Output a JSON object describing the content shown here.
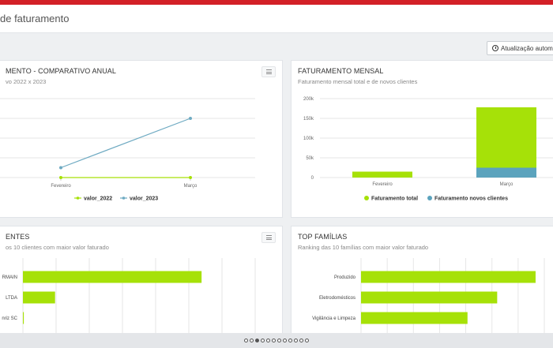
{
  "page": {
    "title": "de faturamento",
    "auto_update_label": "Atualização automá"
  },
  "cards": {
    "annual": {
      "title": "MENTO - COMPARATIVO ANUAL",
      "subtitle": "vo 2022 x 2023"
    },
    "monthly": {
      "title": "FATURAMENTO MENSAL",
      "subtitle": "Faturamento mensal total e de novos clientes"
    },
    "clients": {
      "title": "ENTES",
      "subtitle": "os 10 clientes com maior valor faturado"
    },
    "families": {
      "title": "TOP FAMÍLIAS",
      "subtitle": "Ranking das 10 famílias com maior valor faturado"
    }
  },
  "chart_data": [
    {
      "type": "line",
      "categories": [
        "Fevereiro",
        "Março"
      ],
      "series": [
        {
          "name": "valor_2022",
          "color": "#a6e108",
          "values": [
            0,
            0
          ]
        },
        {
          "name": "valor_2023",
          "color": "#6eaac2",
          "values": [
            1,
            6
          ]
        }
      ],
      "ylim": [
        0,
        8
      ]
    },
    {
      "type": "bar",
      "categories": [
        "Fevereiro",
        "Março"
      ],
      "yticks": [
        "0",
        "50k",
        "100k",
        "150k",
        "200k"
      ],
      "ylim": [
        0,
        200000
      ],
      "series": [
        {
          "name": "Faturamento total",
          "color": "#a6e108",
          "values": [
            15000,
            178000
          ]
        },
        {
          "name": "Faturamento novos clientes",
          "color": "#5ba3bd",
          "values": [
            0,
            25000
          ]
        }
      ]
    },
    {
      "type": "bar",
      "orientation": "horizontal",
      "categories": [
        "RMAIN",
        "LTDA",
        "nriz SC"
      ],
      "values": [
        100,
        18,
        0.5
      ],
      "xlim": [
        0,
        130
      ],
      "color": "#a6e108"
    },
    {
      "type": "bar",
      "orientation": "horizontal",
      "categories": [
        "Produzido",
        "Eletrodomésticos",
        "Vigilância e Limpeza"
      ],
      "values": [
        100,
        78,
        61
      ],
      "xlim": [
        0,
        105
      ],
      "color": "#a6e108"
    }
  ],
  "pager": {
    "count": 12,
    "active": 2
  }
}
